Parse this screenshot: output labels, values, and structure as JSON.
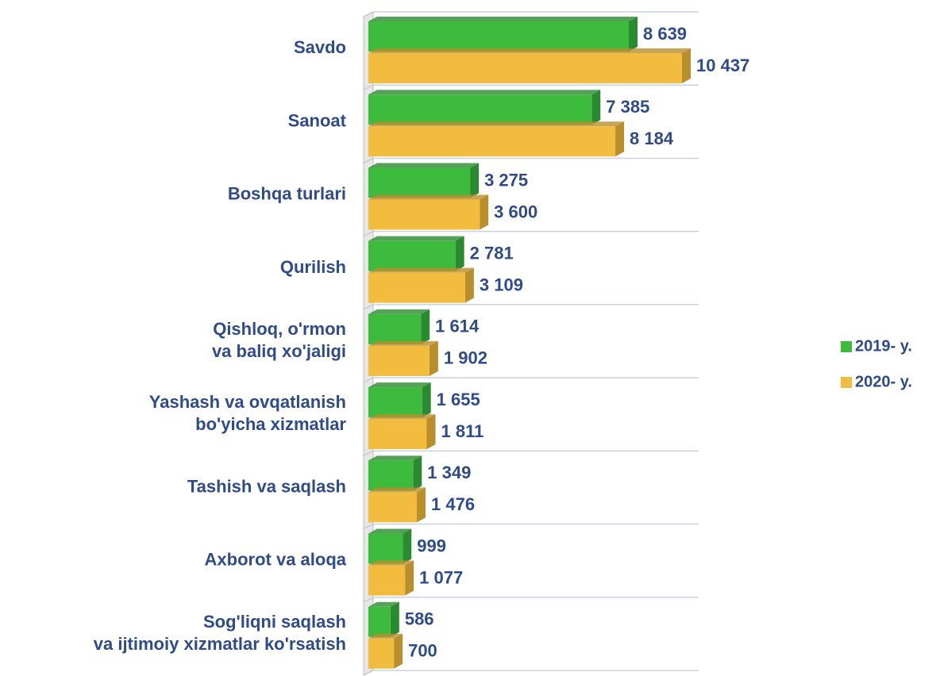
{
  "chart_data": {
    "type": "bar",
    "orientation": "horizontal",
    "categories": [
      [
        "Savdo"
      ],
      [
        "Sanoat"
      ],
      [
        "Boshqa turlari"
      ],
      [
        "Qurilish"
      ],
      [
        "Qishloq, o'rmon",
        "va baliq xo'jaligi"
      ],
      [
        "Yashash va ovqatlanish",
        "bo'yicha xizmatlar"
      ],
      [
        "Tashish va saqlash"
      ],
      [
        "Axborot va aloqa"
      ],
      [
        "Sog'liqni saqlash",
        "va ijtimoiy xizmatlar ko'rsatish"
      ]
    ],
    "series": [
      {
        "name": "2019- y.",
        "color": "#3dbb3d",
        "side_color": "#2a8a2f",
        "values": [
          8639,
          7385,
          3275,
          2781,
          1614,
          1655,
          1349,
          999,
          586
        ],
        "value_labels": [
          "8 639",
          "7 385",
          "3 275",
          "2 781",
          "1 614",
          "1 655",
          "1 349",
          "999",
          "586"
        ]
      },
      {
        "name": "2020- y.",
        "color": "#f2bd3e",
        "side_color": "#b98f2c",
        "values": [
          10437,
          8184,
          3600,
          3109,
          1902,
          1811,
          1476,
          1077,
          700
        ],
        "value_labels": [
          "10 437",
          "8 184",
          "3 600",
          "3 109",
          "1 902",
          "1 811",
          "1 476",
          "1 077",
          "700"
        ]
      }
    ],
    "xlim": [
      0,
      11000
    ],
    "legend": "right"
  }
}
